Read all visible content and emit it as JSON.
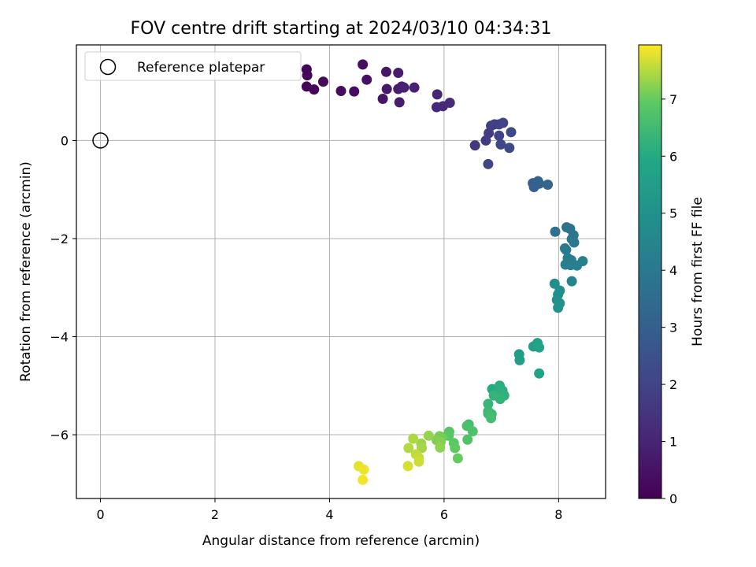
{
  "chart_data": {
    "type": "scatter",
    "title": "FOV centre drift starting at 2024/03/10 04:34:31",
    "xlabel": "Angular distance from reference (arcmin)",
    "ylabel": "Rotation from reference (arcmin)",
    "xlim": [
      -0.42,
      8.82
    ],
    "ylim": [
      -7.3,
      1.95
    ],
    "xticks": [
      0,
      2,
      4,
      6,
      8
    ],
    "yticks": [
      -6,
      -4,
      -2,
      0
    ],
    "grid": true,
    "legend": {
      "label": "Reference platepar",
      "placement": "top-left"
    },
    "reference_point": {
      "x": 0,
      "y": 0
    },
    "colorbar": {
      "label": "Hours from first FF file",
      "range": [
        0,
        7.95
      ],
      "ticks": [
        0,
        1,
        2,
        3,
        4,
        5,
        6,
        7
      ],
      "colormap": "viridis"
    },
    "points": [
      [
        3.6,
        1.45,
        0.05
      ],
      [
        3.61,
        1.33,
        0.1
      ],
      [
        3.6,
        1.1,
        0.15
      ],
      [
        3.73,
        1.04,
        0.2
      ],
      [
        3.89,
        1.2,
        0.25
      ],
      [
        4.2,
        1.01,
        0.3
      ],
      [
        4.43,
        1.0,
        0.35
      ],
      [
        4.58,
        1.55,
        0.4
      ],
      [
        4.65,
        1.24,
        0.45
      ],
      [
        4.93,
        0.85,
        0.55
      ],
      [
        4.99,
        1.4,
        0.6
      ],
      [
        5.0,
        1.05,
        0.65
      ],
      [
        5.2,
        1.38,
        0.7
      ],
      [
        5.22,
        0.78,
        0.75
      ],
      [
        5.2,
        1.05,
        0.8
      ],
      [
        5.26,
        1.1,
        0.85
      ],
      [
        5.3,
        1.08,
        0.9
      ],
      [
        5.48,
        1.08,
        0.95
      ],
      [
        5.88,
        0.94,
        1.05
      ],
      [
        5.87,
        0.68,
        1.1
      ],
      [
        5.98,
        0.7,
        1.15
      ],
      [
        6.1,
        0.77,
        1.2
      ],
      [
        6.54,
        -0.1,
        1.6
      ],
      [
        6.73,
        0.0,
        1.7
      ],
      [
        6.78,
        0.15,
        1.75
      ],
      [
        6.82,
        0.3,
        1.8
      ],
      [
        6.88,
        0.33,
        1.85
      ],
      [
        6.96,
        0.33,
        1.9
      ],
      [
        6.96,
        0.1,
        1.95
      ],
      [
        7.03,
        0.36,
        2.0
      ],
      [
        6.99,
        -0.08,
        2.05
      ],
      [
        6.77,
        -0.48,
        2.1
      ],
      [
        7.17,
        0.17,
        2.15
      ],
      [
        7.14,
        -0.15,
        2.2
      ],
      [
        7.55,
        -0.87,
        3.0
      ],
      [
        7.57,
        -0.95,
        3.05
      ],
      [
        7.64,
        -0.83,
        3.1
      ],
      [
        7.66,
        -0.88,
        3.15
      ],
      [
        7.81,
        -0.9,
        3.2
      ],
      [
        7.94,
        -1.86,
        3.7
      ],
      [
        8.14,
        -1.77,
        3.75
      ],
      [
        8.2,
        -1.8,
        3.8
      ],
      [
        8.26,
        -1.93,
        3.85
      ],
      [
        8.23,
        -2.01,
        3.9
      ],
      [
        8.27,
        -2.08,
        3.95
      ],
      [
        8.11,
        -2.2,
        4.0
      ],
      [
        8.13,
        -2.23,
        4.05
      ],
      [
        8.16,
        -2.4,
        4.1
      ],
      [
        8.22,
        -2.44,
        4.15
      ],
      [
        8.12,
        -2.53,
        4.2
      ],
      [
        8.21,
        -2.54,
        4.25
      ],
      [
        8.32,
        -2.55,
        4.3
      ],
      [
        8.42,
        -2.46,
        4.35
      ],
      [
        8.23,
        -2.87,
        4.4
      ],
      [
        7.93,
        -2.92,
        4.8
      ],
      [
        8.02,
        -3.06,
        4.85
      ],
      [
        7.99,
        -3.14,
        4.9
      ],
      [
        7.97,
        -3.25,
        4.95
      ],
      [
        8.02,
        -3.32,
        5.0
      ],
      [
        7.99,
        -3.41,
        5.05
      ],
      [
        7.31,
        -4.36,
        5.5
      ],
      [
        7.32,
        -4.48,
        5.55
      ],
      [
        7.56,
        -4.2,
        5.6
      ],
      [
        7.63,
        -4.13,
        5.65
      ],
      [
        7.66,
        -4.22,
        5.7
      ],
      [
        7.66,
        -4.75,
        5.75
      ],
      [
        6.84,
        -5.07,
        6.0
      ],
      [
        6.9,
        -5.12,
        6.05
      ],
      [
        6.97,
        -5.0,
        6.1
      ],
      [
        7.02,
        -5.1,
        6.15
      ],
      [
        7.05,
        -5.2,
        6.2
      ],
      [
        6.98,
        -5.27,
        6.25
      ],
      [
        6.87,
        -5.2,
        6.3
      ],
      [
        6.77,
        -5.37,
        6.35
      ],
      [
        6.77,
        -5.52,
        6.4
      ],
      [
        6.77,
        -5.57,
        6.45
      ],
      [
        6.83,
        -5.58,
        6.5
      ],
      [
        6.82,
        -5.66,
        6.55
      ],
      [
        6.43,
        -5.79,
        6.6
      ],
      [
        6.4,
        -5.82,
        6.65
      ],
      [
        6.5,
        -5.93,
        6.7
      ],
      [
        6.41,
        -6.1,
        6.75
      ],
      [
        6.09,
        -5.94,
        6.8
      ],
      [
        6.08,
        -6.02,
        6.85
      ],
      [
        6.17,
        -6.17,
        6.9
      ],
      [
        6.19,
        -6.27,
        6.95
      ],
      [
        6.24,
        -6.48,
        7.0
      ],
      [
        5.97,
        -6.05,
        7.05
      ],
      [
        5.92,
        -6.03,
        7.1
      ],
      [
        5.87,
        -6.11,
        7.15
      ],
      [
        5.94,
        -6.15,
        7.2
      ],
      [
        5.93,
        -6.26,
        7.25
      ],
      [
        5.73,
        -6.02,
        7.3
      ],
      [
        5.6,
        -6.18,
        7.35
      ],
      [
        5.61,
        -6.27,
        7.4
      ],
      [
        5.46,
        -6.08,
        7.45
      ],
      [
        5.38,
        -6.27,
        7.5
      ],
      [
        5.51,
        -6.4,
        7.55
      ],
      [
        5.56,
        -6.47,
        7.6
      ],
      [
        5.56,
        -6.55,
        7.65
      ],
      [
        5.37,
        -6.64,
        7.7
      ],
      [
        4.51,
        -6.64,
        7.8
      ],
      [
        4.6,
        -6.71,
        7.85
      ],
      [
        4.58,
        -6.92,
        7.9
      ]
    ]
  }
}
